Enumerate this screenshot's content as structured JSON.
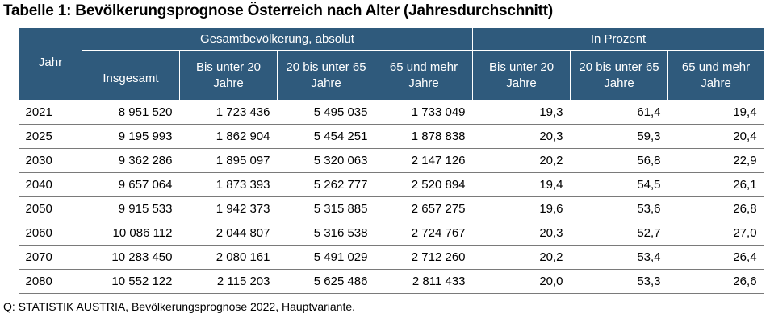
{
  "title": "Tabelle 1: Bevölkerungsprognose Österreich nach Alter (Jahresdurchschnitt)",
  "header": {
    "jahr": "Jahr",
    "group_absolut": "Gesamtbevölkerung, absolut",
    "group_prozent": "In Prozent",
    "columns": [
      "Insgesamt",
      "Bis unter 20 Jahre",
      "20 bis unter 65 Jahre",
      "65 und mehr Jahre",
      "Bis unter 20 Jahre",
      "20 bis unter 65 Jahre",
      "65 und mehr Jahre"
    ]
  },
  "rows": [
    [
      "2021",
      "8 951 520",
      "1 723 436",
      "5 495 035",
      "1 733 049",
      "19,3",
      "61,4",
      "19,4"
    ],
    [
      "2025",
      "9 195 993",
      "1 862 904",
      "5 454 251",
      "1 878 838",
      "20,3",
      "59,3",
      "20,4"
    ],
    [
      "2030",
      "9 362 286",
      "1 895 097",
      "5 320 063",
      "2 147 126",
      "20,2",
      "56,8",
      "22,9"
    ],
    [
      "2040",
      "9 657 064",
      "1 873 393",
      "5 262 777",
      "2 520 894",
      "19,4",
      "54,5",
      "26,1"
    ],
    [
      "2050",
      "9 915 533",
      "1 942 373",
      "5 315 885",
      "2 657 275",
      "19,6",
      "53,6",
      "26,8"
    ],
    [
      "2060",
      "10 086 112",
      "2 044 807",
      "5 316 538",
      "2 724 767",
      "20,3",
      "52,7",
      "27,0"
    ],
    [
      "2070",
      "10 283 450",
      "2 080 161",
      "5 491 029",
      "2 712 260",
      "20,2",
      "53,4",
      "26,4"
    ],
    [
      "2080",
      "10 552 122",
      "2 115 203",
      "5 625 486",
      "2 811 433",
      "20,0",
      "53,3",
      "26,6"
    ]
  ],
  "source": "Q: STATISTIK AUSTRIA, Bevölkerungsprognose 2022, Hauptvariante.",
  "colors": {
    "header_bg": "#2f5a7c",
    "header_text": "#ffffff",
    "row_rule": "#7a7a7a"
  }
}
